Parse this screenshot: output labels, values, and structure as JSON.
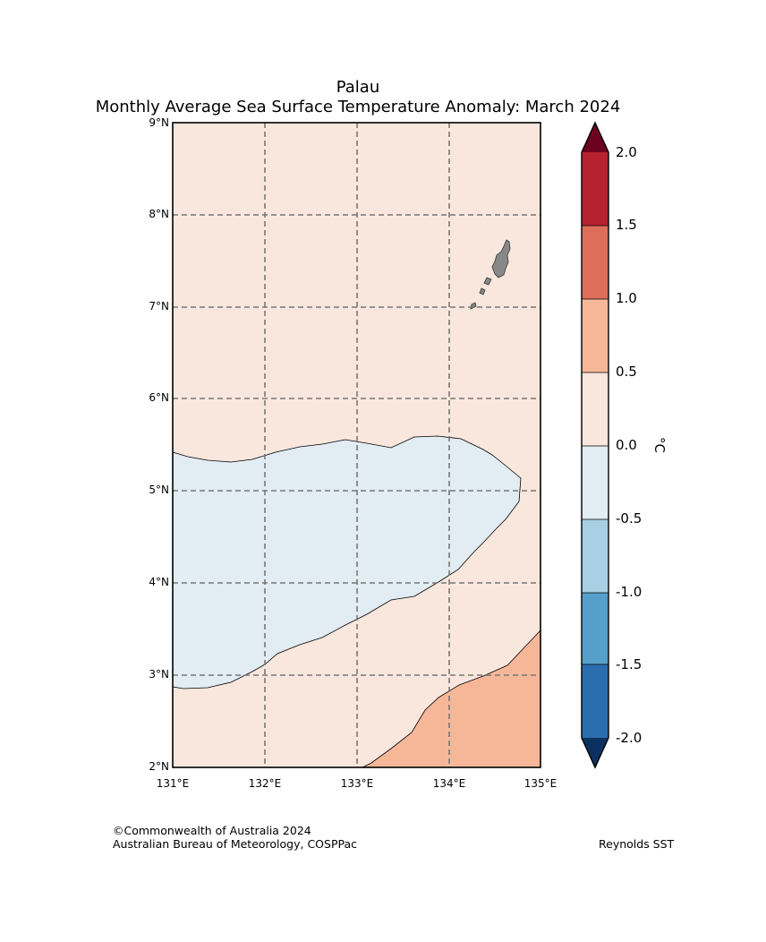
{
  "title": {
    "line1": "Palau",
    "line2": "Monthly Average Sea Surface Temperature Anomaly: March 2024"
  },
  "axes": {
    "lat_labels": [
      "9°N",
      "8°N",
      "7°N",
      "6°N",
      "5°N",
      "4°N",
      "3°N",
      "2°N"
    ],
    "lon_labels": [
      "131°E",
      "132°E",
      "133°E",
      "134°E",
      "135°E"
    ],
    "lat_range": [
      2,
      9
    ],
    "lon_range": [
      131,
      135
    ],
    "grid": "dashed"
  },
  "map": {
    "background_color": "#f9e7dd",
    "regions": [
      {
        "name": "0.0 to 0.5 anomaly (background)",
        "color": "#f9e7dd"
      },
      {
        "name": "-0.5 to 0.0 anomaly",
        "color": "#e1ecf3"
      },
      {
        "name": "0.5 to 1.0 anomaly",
        "color": "#f6b799"
      }
    ],
    "land_color": "#888888"
  },
  "colorbar": {
    "ticks": [
      "2.0",
      "1.5",
      "1.0",
      "0.5",
      "0.0",
      "-0.5",
      "-1.0",
      "-1.5",
      "-2.0"
    ],
    "unit": "°C",
    "colors": [
      "#b72230",
      "#dd6f5a",
      "#f6b799",
      "#f9e7dd",
      "#e1ecf3",
      "#a8d0e4",
      "#579fcb",
      "#2b6eb0"
    ],
    "extend_top_color": "#6d0220",
    "extend_bottom_color": "#0c3160"
  },
  "footer": {
    "copyright": "©Commonwealth of Australia 2024",
    "org": "Australian Bureau of Meteorology, COSPPac",
    "source": "Reynolds SST"
  }
}
